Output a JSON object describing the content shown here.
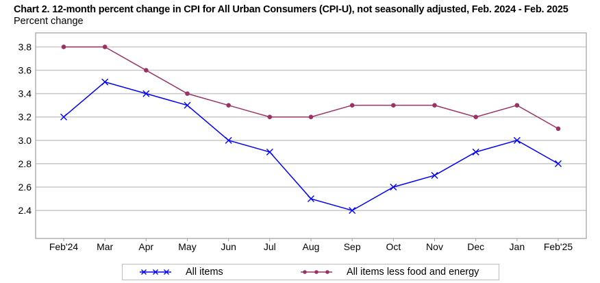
{
  "chart_data": {
    "type": "line",
    "title": "Chart 2. 12-month percent change in CPI for All Urban Consumers (CPI-U), not seasonally adjusted, Feb. 2024 - Feb. 2025",
    "ylabel": "Percent change",
    "xlabel": "",
    "categories": [
      "Feb'24",
      "Mar",
      "Apr",
      "May",
      "Jun",
      "Jul",
      "Aug",
      "Sep",
      "Oct",
      "Nov",
      "Dec",
      "Jan",
      "Feb'25"
    ],
    "yticks": [
      "3.8",
      "3.6",
      "3.4",
      "3.2",
      "3.0",
      "2.8",
      "2.6",
      "2.4"
    ],
    "ylim": [
      2.16,
      3.92
    ],
    "grid": true,
    "legend_position": "bottom",
    "series": [
      {
        "name": "All items",
        "color": "#0000ff",
        "marker": "x",
        "values": [
          3.2,
          3.5,
          3.4,
          3.3,
          3.0,
          2.9,
          2.5,
          2.4,
          2.6,
          2.7,
          2.9,
          3.0,
          2.8
        ]
      },
      {
        "name": "All items less food and energy",
        "color": "#993366",
        "marker": "circle",
        "values": [
          3.8,
          3.8,
          3.6,
          3.4,
          3.3,
          3.2,
          3.2,
          3.3,
          3.3,
          3.3,
          3.2,
          3.3,
          3.1
        ]
      }
    ]
  }
}
